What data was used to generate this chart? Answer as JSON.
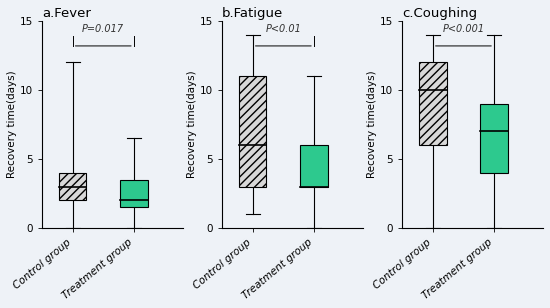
{
  "panels": [
    {
      "title": "a.Fever",
      "pvalue": "P=0.017",
      "ylabel": "Recovery time(days)",
      "ylim": [
        0,
        15
      ],
      "yticks": [
        0,
        5,
        10,
        15
      ],
      "control": {
        "whisker_low": 0,
        "q1": 2.0,
        "median": 3.0,
        "q3": 4.0,
        "whisker_high": 12.0,
        "color": "hatch"
      },
      "treatment": {
        "whisker_low": 0,
        "q1": 1.5,
        "median": 2.0,
        "q3": 3.5,
        "whisker_high": 6.5,
        "color": "#2dc98e"
      }
    },
    {
      "title": "b.Fatigue",
      "pvalue": "P<0.01",
      "ylabel": "Recovery time(days)",
      "ylim": [
        0,
        15
      ],
      "yticks": [
        0,
        5,
        10,
        15
      ],
      "control": {
        "whisker_low": 1.0,
        "q1": 3.0,
        "median": 6.0,
        "q3": 11.0,
        "whisker_high": 14.0,
        "color": "hatch"
      },
      "treatment": {
        "whisker_low": 0,
        "q1": 3.0,
        "median": 3.0,
        "q3": 6.0,
        "whisker_high": 11.0,
        "color": "#2dc98e"
      }
    },
    {
      "title": "c.Coughing",
      "pvalue": "P<0.001",
      "ylabel": "Recovery time(days)",
      "ylim": [
        0,
        15
      ],
      "yticks": [
        0,
        5,
        10,
        15
      ],
      "control": {
        "whisker_low": 0,
        "q1": 6.0,
        "median": 10.0,
        "q3": 12.0,
        "whisker_high": 14.0,
        "color": "hatch"
      },
      "treatment": {
        "whisker_low": 0,
        "q1": 4.0,
        "median": 7.0,
        "q3": 9.0,
        "whisker_high": 14.0,
        "color": "#2dc98e"
      }
    }
  ],
  "box_width": 0.45,
  "hatch_pattern": "////",
  "hatch_facecolor": "#d8d8d8",
  "line_color": "#000000",
  "background_color": "#eef2f7",
  "fig_background": "#eef2f7",
  "xlabel_control": "Control group",
  "xlabel_treatment": "Treatment group",
  "title_fontsize": 9.5,
  "label_fontsize": 7.5,
  "tick_fontsize": 7.5,
  "pval_fontsize": 7
}
